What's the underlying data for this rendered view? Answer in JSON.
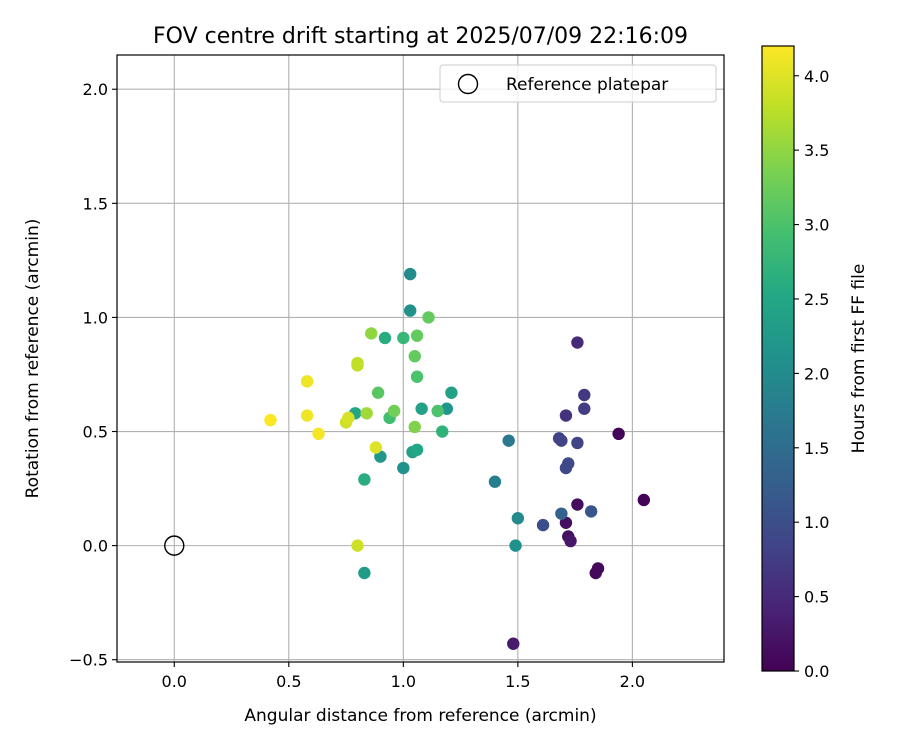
{
  "chart_data": {
    "type": "scatter",
    "title": "FOV centre drift starting at 2025/07/09 22:16:09",
    "xlabel": "Angular distance from reference (arcmin)",
    "ylabel": "Rotation from reference (arcmin)",
    "xlim": [
      -0.25,
      2.4
    ],
    "ylim": [
      -0.51,
      2.15
    ],
    "xticks": [
      0.0,
      0.5,
      1.0,
      1.5,
      2.0
    ],
    "xtick_labels": [
      "0.0",
      "0.5",
      "1.0",
      "1.5",
      "2.0"
    ],
    "yticks": [
      -0.5,
      0.0,
      0.5,
      1.0,
      1.5,
      2.0
    ],
    "ytick_labels": [
      "−0.5",
      "0.0",
      "0.5",
      "1.0",
      "1.5",
      "2.0"
    ],
    "grid": true,
    "legend": {
      "position": "top-right",
      "entries": [
        "Reference platepar"
      ]
    },
    "reference": {
      "x": 0.0,
      "y": 0.0
    },
    "colorbar": {
      "label": "Hours from first FF file",
      "colormap": "viridis",
      "range": [
        0.0,
        4.2
      ],
      "ticks": [
        0.0,
        0.5,
        1.0,
        1.5,
        2.0,
        2.5,
        3.0,
        3.5,
        4.0
      ],
      "tick_labels": [
        "0.0",
        "0.5",
        "1.0",
        "1.5",
        "2.0",
        "2.5",
        "3.0",
        "3.5",
        "4.0"
      ]
    },
    "points": [
      {
        "x": 2.05,
        "y": 0.2,
        "c": 0.02
      },
      {
        "x": 1.94,
        "y": 0.49,
        "c": 0.05
      },
      {
        "x": 1.85,
        "y": -0.1,
        "c": 0.08
      },
      {
        "x": 1.84,
        "y": -0.12,
        "c": 0.1
      },
      {
        "x": 1.76,
        "y": 0.18,
        "c": 0.13
      },
      {
        "x": 1.71,
        "y": 0.1,
        "c": 0.15
      },
      {
        "x": 1.72,
        "y": 0.04,
        "c": 0.18
      },
      {
        "x": 1.73,
        "y": 0.02,
        "c": 0.25
      },
      {
        "x": 1.48,
        "y": -0.43,
        "c": 0.3
      },
      {
        "x": 1.76,
        "y": 0.89,
        "c": 0.5
      },
      {
        "x": 1.71,
        "y": 0.57,
        "c": 0.6
      },
      {
        "x": 1.79,
        "y": 0.66,
        "c": 0.7
      },
      {
        "x": 1.79,
        "y": 0.6,
        "c": 0.75
      },
      {
        "x": 1.68,
        "y": 0.47,
        "c": 0.8
      },
      {
        "x": 1.69,
        "y": 0.46,
        "c": 0.85
      },
      {
        "x": 1.76,
        "y": 0.45,
        "c": 0.85
      },
      {
        "x": 1.72,
        "y": 0.36,
        "c": 0.9
      },
      {
        "x": 1.71,
        "y": 0.34,
        "c": 0.9
      },
      {
        "x": 1.61,
        "y": 0.09,
        "c": 1.0
      },
      {
        "x": 1.82,
        "y": 0.15,
        "c": 1.1
      },
      {
        "x": 1.69,
        "y": 0.14,
        "c": 1.3
      },
      {
        "x": 1.46,
        "y": 0.46,
        "c": 1.7
      },
      {
        "x": 1.4,
        "y": 0.28,
        "c": 1.8
      },
      {
        "x": 1.5,
        "y": 0.12,
        "c": 2.0
      },
      {
        "x": 1.49,
        "y": 0.0,
        "c": 2.1
      },
      {
        "x": 1.03,
        "y": 1.19,
        "c": 2.0
      },
      {
        "x": 1.03,
        "y": 1.03,
        "c": 2.1
      },
      {
        "x": 1.0,
        "y": 0.34,
        "c": 2.1
      },
      {
        "x": 0.9,
        "y": 0.39,
        "c": 2.2
      },
      {
        "x": 0.83,
        "y": -0.12,
        "c": 2.3
      },
      {
        "x": 1.19,
        "y": 0.6,
        "c": 2.2
      },
      {
        "x": 1.21,
        "y": 0.67,
        "c": 2.4
      },
      {
        "x": 1.08,
        "y": 0.6,
        "c": 2.4
      },
      {
        "x": 1.04,
        "y": 0.41,
        "c": 2.4
      },
      {
        "x": 1.06,
        "y": 0.42,
        "c": 2.5
      },
      {
        "x": 0.79,
        "y": 0.58,
        "c": 2.5
      },
      {
        "x": 0.92,
        "y": 0.91,
        "c": 2.6
      },
      {
        "x": 0.83,
        "y": 0.29,
        "c": 2.6
      },
      {
        "x": 1.17,
        "y": 0.5,
        "c": 2.7
      },
      {
        "x": 1.0,
        "y": 0.91,
        "c": 2.8
      },
      {
        "x": 0.94,
        "y": 0.56,
        "c": 2.9
      },
      {
        "x": 1.15,
        "y": 0.59,
        "c": 3.0
      },
      {
        "x": 1.06,
        "y": 0.74,
        "c": 3.0
      },
      {
        "x": 0.89,
        "y": 0.67,
        "c": 3.1
      },
      {
        "x": 1.05,
        "y": 0.83,
        "c": 3.2
      },
      {
        "x": 1.11,
        "y": 1.0,
        "c": 3.2
      },
      {
        "x": 1.06,
        "y": 0.92,
        "c": 3.2
      },
      {
        "x": 0.96,
        "y": 0.59,
        "c": 3.3
      },
      {
        "x": 1.05,
        "y": 0.52,
        "c": 3.4
      },
      {
        "x": 0.86,
        "y": 0.93,
        "c": 3.5
      },
      {
        "x": 0.84,
        "y": 0.58,
        "c": 3.6
      },
      {
        "x": 0.8,
        "y": 0.79,
        "c": 3.8
      },
      {
        "x": 0.8,
        "y": 0.8,
        "c": 3.8
      },
      {
        "x": 0.75,
        "y": 0.54,
        "c": 3.9
      },
      {
        "x": 0.76,
        "y": 0.56,
        "c": 3.95
      },
      {
        "x": 0.88,
        "y": 0.43,
        "c": 4.0
      },
      {
        "x": 0.8,
        "y": 0.0,
        "c": 3.9
      },
      {
        "x": 0.58,
        "y": 0.72,
        "c": 4.1
      },
      {
        "x": 0.58,
        "y": 0.57,
        "c": 4.1
      },
      {
        "x": 0.63,
        "y": 0.49,
        "c": 4.15
      },
      {
        "x": 0.42,
        "y": 0.55,
        "c": 4.2
      }
    ]
  }
}
